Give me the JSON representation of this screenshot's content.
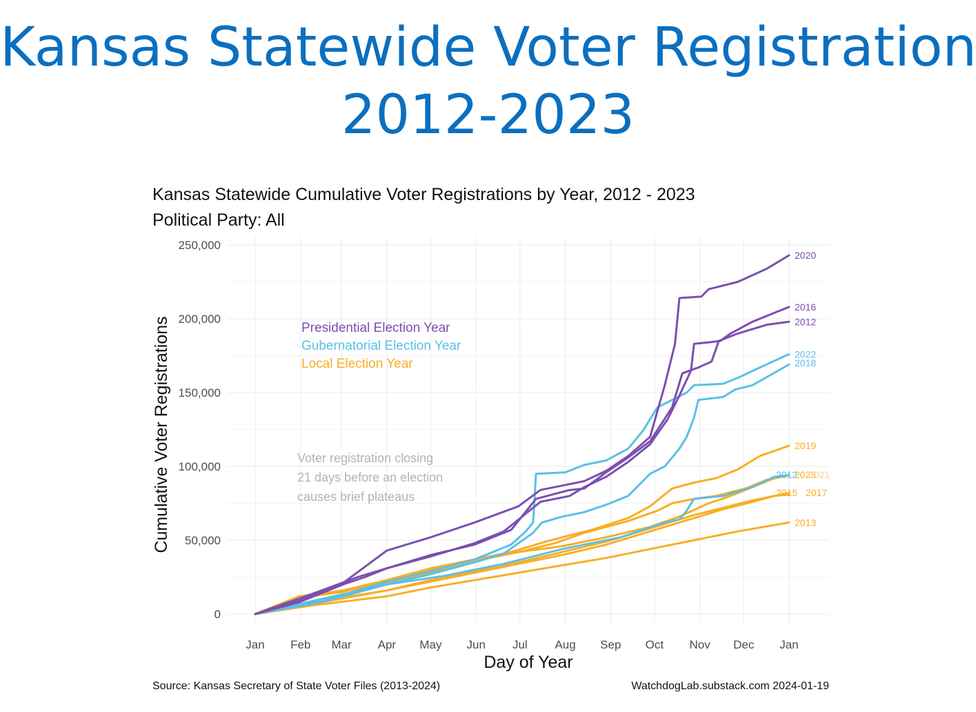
{
  "page": {
    "title_line1": "Kansas Statewide Voter Registration",
    "title_line2": "2012-2023"
  },
  "chart_data": {
    "type": "line",
    "title": "Kansas Statewide Cumulative Voter Registrations by Year, 2012 - 2023",
    "subtitle": "Political Party: All",
    "xlabel": "Day of Year",
    "ylabel": "Cumulative Voter Registrations",
    "x_ticks": [
      "Jan",
      "Feb",
      "Mar",
      "Apr",
      "May",
      "Jun",
      "Jul",
      "Aug",
      "Sep",
      "Oct",
      "Nov",
      "Dec",
      "Jan"
    ],
    "y_ticks": [
      "0",
      "50,000",
      "100,000",
      "150,000",
      "200,000",
      "250,000"
    ],
    "xlim": [
      0,
      365
    ],
    "ylim": [
      0,
      250000
    ],
    "grid": true,
    "legend": [
      {
        "label": "Presidential Election Year",
        "color": "#7b4fb0"
      },
      {
        "label": "Gubernatorial Election Year",
        "color": "#5bbfe6"
      },
      {
        "label": "Local Election Year",
        "color": "#f8ae25"
      }
    ],
    "annotation": [
      "Voter registration closing",
      "21 days before an election",
      "causes brief plateaus"
    ],
    "colors": {
      "presidential": "#7b4fb0",
      "gubernatorial": "#5bbfe6",
      "local": "#f8ae25"
    },
    "series": [
      {
        "name": "2020",
        "group": "presidential",
        "points": [
          [
            0,
            0
          ],
          [
            30,
            9000
          ],
          [
            60,
            21000
          ],
          [
            90,
            43000
          ],
          [
            120,
            52000
          ],
          [
            150,
            62000
          ],
          [
            180,
            73000
          ],
          [
            195,
            84000
          ],
          [
            210,
            87000
          ],
          [
            225,
            90000
          ],
          [
            240,
            97000
          ],
          [
            255,
            107000
          ],
          [
            270,
            120000
          ],
          [
            280,
            155000
          ],
          [
            287,
            183000
          ],
          [
            290,
            214000
          ],
          [
            305,
            215000
          ],
          [
            310,
            220000
          ],
          [
            330,
            225000
          ],
          [
            350,
            234000
          ],
          [
            365,
            243000
          ]
        ]
      },
      {
        "name": "2016",
        "group": "presidential",
        "points": [
          [
            0,
            0
          ],
          [
            40,
            14000
          ],
          [
            70,
            25000
          ],
          [
            90,
            31000
          ],
          [
            120,
            39000
          ],
          [
            150,
            48000
          ],
          [
            170,
            56000
          ],
          [
            185,
            68000
          ],
          [
            195,
            76000
          ],
          [
            215,
            80000
          ],
          [
            225,
            86000
          ],
          [
            240,
            93000
          ],
          [
            255,
            103000
          ],
          [
            270,
            115000
          ],
          [
            282,
            132000
          ],
          [
            290,
            148000
          ],
          [
            298,
            165000
          ],
          [
            300,
            183000
          ],
          [
            310,
            184000
          ],
          [
            318,
            185000
          ],
          [
            325,
            190000
          ],
          [
            340,
            198000
          ],
          [
            355,
            204000
          ],
          [
            365,
            208000
          ]
        ]
      },
      {
        "name": "2012",
        "group": "presidential",
        "points": [
          [
            0,
            0
          ],
          [
            30,
            8000
          ],
          [
            60,
            20000
          ],
          [
            75,
            25000
          ],
          [
            90,
            31000
          ],
          [
            120,
            40000
          ],
          [
            150,
            47000
          ],
          [
            175,
            57000
          ],
          [
            192,
            78000
          ],
          [
            215,
            84000
          ],
          [
            225,
            85000
          ],
          [
            240,
            96000
          ],
          [
            255,
            106000
          ],
          [
            270,
            117000
          ],
          [
            285,
            140000
          ],
          [
            292,
            163000
          ],
          [
            303,
            167000
          ],
          [
            312,
            171000
          ],
          [
            317,
            185000
          ],
          [
            330,
            190000
          ],
          [
            350,
            196000
          ],
          [
            365,
            198000
          ]
        ]
      },
      {
        "name": "2022",
        "group": "gubernatorial",
        "points": [
          [
            0,
            0
          ],
          [
            45,
            8500
          ],
          [
            90,
            22000
          ],
          [
            120,
            29000
          ],
          [
            150,
            37000
          ],
          [
            175,
            47000
          ],
          [
            185,
            56000
          ],
          [
            190,
            62000
          ],
          [
            192,
            95000
          ],
          [
            212,
            96000
          ],
          [
            225,
            101000
          ],
          [
            240,
            104000
          ],
          [
            255,
            112000
          ],
          [
            265,
            124000
          ],
          [
            275,
            140000
          ],
          [
            285,
            145000
          ],
          [
            295,
            150000
          ],
          [
            300,
            155000
          ],
          [
            320,
            156000
          ],
          [
            330,
            160000
          ],
          [
            345,
            167000
          ],
          [
            365,
            176000
          ]
        ]
      },
      {
        "name": "2018",
        "group": "gubernatorial",
        "points": [
          [
            0,
            0
          ],
          [
            45,
            8000
          ],
          [
            90,
            20000
          ],
          [
            120,
            27000
          ],
          [
            150,
            35000
          ],
          [
            170,
            41000
          ],
          [
            190,
            55000
          ],
          [
            196,
            62000
          ],
          [
            210,
            66000
          ],
          [
            225,
            69000
          ],
          [
            240,
            74000
          ],
          [
            255,
            80000
          ],
          [
            270,
            95000
          ],
          [
            280,
            100000
          ],
          [
            290,
            112000
          ],
          [
            295,
            120000
          ],
          [
            300,
            133000
          ],
          [
            303,
            145000
          ],
          [
            320,
            147000
          ],
          [
            328,
            152000
          ],
          [
            340,
            155000
          ],
          [
            365,
            169000
          ]
        ]
      },
      {
        "name": "2012",
        "label": "2012",
        "group": "gubernatorial",
        "points": [
          [
            0,
            0
          ],
          [
            40,
            9000
          ],
          [
            90,
            20000
          ],
          [
            130,
            26000
          ],
          [
            170,
            34000
          ],
          [
            210,
            44000
          ],
          [
            250,
            52000
          ],
          [
            280,
            62000
          ],
          [
            290,
            64000
          ],
          [
            295,
            70000
          ],
          [
            300,
            78000
          ],
          [
            320,
            80000
          ],
          [
            340,
            86000
          ],
          [
            355,
            93000
          ],
          [
            365,
            94000
          ]
        ]
      },
      {
        "name": "2019",
        "group": "local",
        "points": [
          [
            0,
            0
          ],
          [
            30,
            11000
          ],
          [
            60,
            15000
          ],
          [
            90,
            22000
          ],
          [
            120,
            30000
          ],
          [
            150,
            37000
          ],
          [
            175,
            42000
          ],
          [
            195,
            48000
          ],
          [
            210,
            52000
          ],
          [
            230,
            57000
          ],
          [
            255,
            65000
          ],
          [
            270,
            73000
          ],
          [
            285,
            85000
          ],
          [
            300,
            89000
          ],
          [
            315,
            92000
          ],
          [
            330,
            98000
          ],
          [
            345,
            107000
          ],
          [
            365,
            114000
          ]
        ]
      },
      {
        "name": "2023",
        "group": "local",
        "points": [
          [
            0,
            0
          ],
          [
            30,
            12000
          ],
          [
            60,
            16000
          ],
          [
            90,
            23000
          ],
          [
            120,
            31000
          ],
          [
            150,
            37000
          ],
          [
            180,
            42000
          ],
          [
            205,
            48000
          ],
          [
            225,
            55000
          ],
          [
            255,
            63000
          ],
          [
            275,
            70000
          ],
          [
            285,
            75000
          ],
          [
            300,
            78000
          ],
          [
            315,
            80000
          ],
          [
            335,
            85000
          ],
          [
            350,
            91000
          ],
          [
            365,
            94000
          ]
        ]
      },
      {
        "name": "2021",
        "group": "local",
        "points": [
          [
            0,
            0
          ],
          [
            30,
            11000
          ],
          [
            60,
            16000
          ],
          [
            90,
            21000
          ],
          [
            120,
            28000
          ],
          [
            150,
            36000
          ],
          [
            180,
            42000
          ],
          [
            210,
            46000
          ],
          [
            240,
            52000
          ],
          [
            270,
            59000
          ],
          [
            290,
            66000
          ],
          [
            310,
            75000
          ],
          [
            325,
            80000
          ],
          [
            340,
            86000
          ],
          [
            355,
            92000
          ],
          [
            365,
            94000
          ]
        ]
      },
      {
        "name": "2015",
        "group": "local",
        "points": [
          [
            0,
            0
          ],
          [
            40,
            8000
          ],
          [
            90,
            16000
          ],
          [
            120,
            22000
          ],
          [
            150,
            28000
          ],
          [
            180,
            34000
          ],
          [
            210,
            40000
          ],
          [
            240,
            47000
          ],
          [
            270,
            56000
          ],
          [
            300,
            65000
          ],
          [
            320,
            71000
          ],
          [
            340,
            76000
          ],
          [
            355,
            80000
          ],
          [
            365,
            82000
          ]
        ]
      },
      {
        "name": "2017",
        "group": "local",
        "points": [
          [
            0,
            0
          ],
          [
            40,
            7000
          ],
          [
            90,
            16000
          ],
          [
            120,
            23000
          ],
          [
            150,
            29000
          ],
          [
            180,
            35000
          ],
          [
            210,
            42000
          ],
          [
            240,
            49000
          ],
          [
            270,
            58000
          ],
          [
            300,
            67000
          ],
          [
            320,
            72000
          ],
          [
            340,
            77000
          ],
          [
            355,
            80000
          ],
          [
            365,
            81000
          ]
        ]
      },
      {
        "name": "2013",
        "group": "local",
        "points": [
          [
            0,
            0
          ],
          [
            40,
            6000
          ],
          [
            90,
            12000
          ],
          [
            120,
            18000
          ],
          [
            150,
            23000
          ],
          [
            180,
            28000
          ],
          [
            210,
            33000
          ],
          [
            240,
            38000
          ],
          [
            270,
            44000
          ],
          [
            300,
            50000
          ],
          [
            330,
            56000
          ],
          [
            365,
            62000
          ]
        ]
      }
    ],
    "end_labels": [
      {
        "text": "2020",
        "color": "#7b4fb0",
        "y": 243000
      },
      {
        "text": "2016",
        "color": "#7b4fb0",
        "y": 208000
      },
      {
        "text": "2012",
        "color": "#7b4fb0",
        "y": 198000
      },
      {
        "text": "2022",
        "color": "#5bbfe6",
        "y": 176000
      },
      {
        "text": "2018",
        "color": "#5bbfe6",
        "y": 170000
      },
      {
        "text": "2019",
        "color": "#f8ae25",
        "y": 114000
      },
      {
        "text": "2013",
        "color": "#f8ae25",
        "y": 62000
      }
    ],
    "cluster_labels": [
      {
        "text": "2012",
        "color": "#5bbfe6"
      },
      {
        "text": "2023",
        "color": "#f8ae25"
      },
      {
        "text": "2021",
        "color": "#fbd38a"
      },
      {
        "text": "2015",
        "color": "#f8ae25"
      },
      {
        "text": "2017",
        "color": "#f8ae25"
      }
    ],
    "source": "Source:  Kansas Secretary of State Voter Files (2013-2024)",
    "credit": "WatchdogLab.substack.com 2024-01-19"
  }
}
